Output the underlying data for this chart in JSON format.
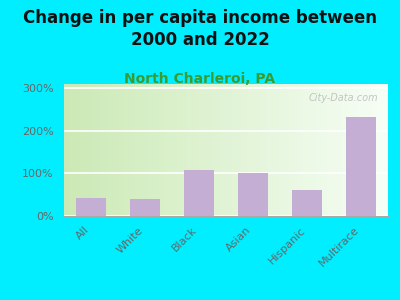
{
  "title": "Change in per capita income between\n2000 and 2022",
  "subtitle": "North Charleroi, PA",
  "categories": [
    "All",
    "White",
    "Black",
    "Asian",
    "Hispanic",
    "Multirace"
  ],
  "values": [
    42,
    40,
    107,
    100,
    60,
    232
  ],
  "bar_color": "#c4aed4",
  "background_outer": "#00eeff",
  "watermark": "City-Data.com",
  "title_fontsize": 12,
  "subtitle_fontsize": 10,
  "subtitle_color": "#3a9c30",
  "tick_label_color": "#666666",
  "ylim": [
    0,
    310
  ],
  "yticks": [
    0,
    100,
    200,
    300
  ]
}
